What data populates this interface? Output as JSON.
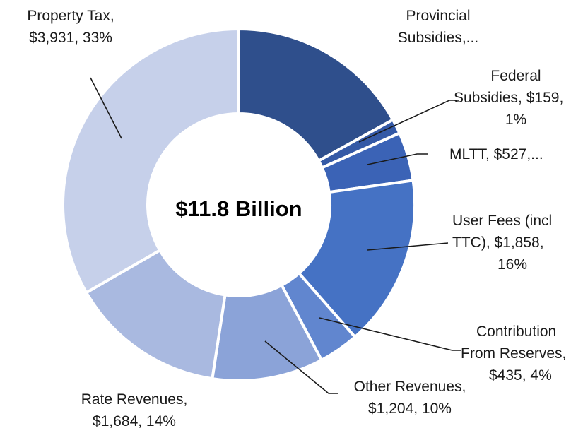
{
  "chart_data": {
    "type": "pie",
    "variant": "donut",
    "center_label": "$11.8 Billion",
    "units": "$ millions",
    "slices": [
      {
        "name": "Provincial Subsidies",
        "value": 2002,
        "label_lines": [
          "Provincial",
          "Subsidies,..."
        ],
        "color": "#2f4f8c"
      },
      {
        "name": "Federal Subsidies",
        "value": 159,
        "percent": 1,
        "label_lines": [
          "Federal",
          "Subsidies, $159,",
          "1%"
        ],
        "color": "#3459a6"
      },
      {
        "name": "MLTT",
        "value": 527,
        "label_lines": [
          "MLTT, $527,..."
        ],
        "color": "#3b63b6"
      },
      {
        "name": "User Fees (incl TTC)",
        "value": 1858,
        "percent": 16,
        "label_lines": [
          "User Fees (incl",
          "TTC), $1,858,",
          "16%"
        ],
        "color": "#4572c4"
      },
      {
        "name": "Contribution From Reserves",
        "value": 435,
        "percent": 4,
        "label_lines": [
          "Contribution",
          "From Reserves,",
          "$435, 4%"
        ],
        "color": "#6186cf"
      },
      {
        "name": "Other Revenues",
        "value": 1204,
        "percent": 10,
        "label_lines": [
          "Other Revenues,",
          "$1,204, 10%"
        ],
        "color": "#8ba3d8"
      },
      {
        "name": "Rate Revenues",
        "value": 1684,
        "percent": 14,
        "label_lines": [
          "Rate Revenues,",
          "$1,684, 14%"
        ],
        "color": "#a9b9e0"
      },
      {
        "name": "Property Tax",
        "value": 3931,
        "percent": 33,
        "label_lines": [
          "Property Tax,",
          "$3,931, 33%"
        ],
        "color": "#c6d0ea"
      }
    ]
  }
}
